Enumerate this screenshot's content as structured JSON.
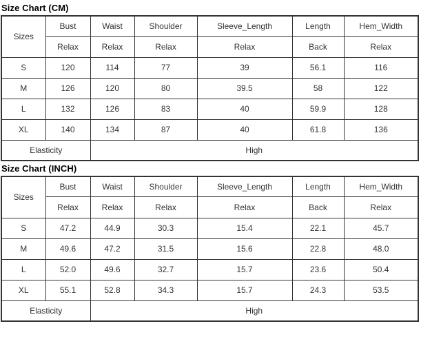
{
  "colors": {
    "border": "#333333",
    "text": "#333333",
    "title": "#000000",
    "background": "#ffffff"
  },
  "tables": [
    {
      "title": "Size Chart (CM)",
      "columns": [
        "Sizes",
        "Bust",
        "Waist",
        "Shoulder",
        "Sleeve_Length",
        "Length",
        "Hem_Width"
      ],
      "measure_types": [
        "Relax",
        "Relax",
        "Relax",
        "Relax",
        "Back",
        "Relax"
      ],
      "rows": [
        {
          "size": "S",
          "values": [
            "120",
            "114",
            "77",
            "39",
            "56.1",
            "116"
          ]
        },
        {
          "size": "M",
          "values": [
            "126",
            "120",
            "80",
            "39.5",
            "58",
            "122"
          ]
        },
        {
          "size": "L",
          "values": [
            "132",
            "126",
            "83",
            "40",
            "59.9",
            "128"
          ]
        },
        {
          "size": "XL",
          "values": [
            "140",
            "134",
            "87",
            "40",
            "61.8",
            "136"
          ]
        }
      ],
      "footer": {
        "label": "Elasticity",
        "value": "High"
      }
    },
    {
      "title": "Size Chart (INCH)",
      "columns": [
        "Sizes",
        "Bust",
        "Waist",
        "Shoulder",
        "Sleeve_Length",
        "Length",
        "Hem_Width"
      ],
      "measure_types": [
        "Relax",
        "Relax",
        "Relax",
        "Relax",
        "Back",
        "Relax"
      ],
      "rows": [
        {
          "size": "S",
          "values": [
            "47.2",
            "44.9",
            "30.3",
            "15.4",
            "22.1",
            "45.7"
          ]
        },
        {
          "size": "M",
          "values": [
            "49.6",
            "47.2",
            "31.5",
            "15.6",
            "22.8",
            "48.0"
          ]
        },
        {
          "size": "L",
          "values": [
            "52.0",
            "49.6",
            "32.7",
            "15.7",
            "23.6",
            "50.4"
          ]
        },
        {
          "size": "XL",
          "values": [
            "55.1",
            "52.8",
            "34.3",
            "15.7",
            "24.3",
            "53.5"
          ]
        }
      ],
      "footer": {
        "label": "Elasticity",
        "value": "High"
      }
    }
  ]
}
